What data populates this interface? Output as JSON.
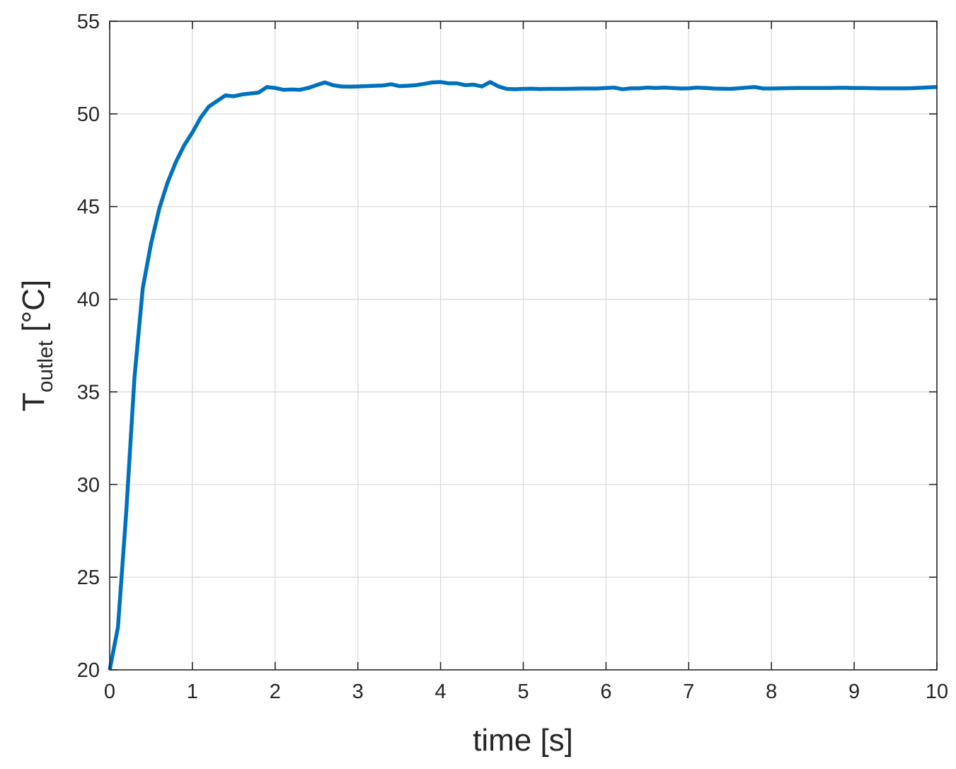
{
  "chart_data": {
    "type": "line",
    "title": "",
    "xlabel": "time [s]",
    "ylabel": {
      "main": "T",
      "subscript": "outlet",
      "unit": " [°C]"
    },
    "xlim": [
      0,
      10
    ],
    "ylim": [
      20,
      55
    ],
    "xticks": [
      0,
      1,
      2,
      3,
      4,
      5,
      6,
      7,
      8,
      9,
      10
    ],
    "yticks": [
      20,
      25,
      30,
      35,
      40,
      45,
      50,
      55
    ],
    "xtick_labels": [
      "0",
      "1",
      "2",
      "3",
      "4",
      "5",
      "6",
      "7",
      "8",
      "9",
      "10"
    ],
    "ytick_labels": [
      "20",
      "25",
      "30",
      "35",
      "40",
      "45",
      "50",
      "55"
    ],
    "grid": true,
    "box": true,
    "colors": {
      "line": "#0072BD",
      "grid": "#dcdcdc",
      "axes": "#262626"
    },
    "series": [
      {
        "x": [
          0,
          0.1,
          0.2,
          0.3,
          0.4,
          0.5,
          0.6,
          0.7,
          0.8,
          0.9,
          1.0,
          1.1,
          1.2,
          1.3,
          1.4,
          1.5,
          1.6,
          1.7,
          1.8,
          1.9,
          2.0,
          2.1,
          2.2,
          2.3,
          2.4,
          2.5,
          2.6,
          2.7,
          2.8,
          2.9,
          3.0,
          3.1,
          3.2,
          3.3,
          3.4,
          3.5,
          3.6,
          3.7,
          3.8,
          3.9,
          4.0,
          4.1,
          4.2,
          4.3,
          4.4,
          4.5,
          4.6,
          4.7,
          4.8,
          4.9,
          5.0,
          5.1,
          5.2,
          5.3,
          5.4,
          5.5,
          5.6,
          5.7,
          5.8,
          5.9,
          6.0,
          6.1,
          6.2,
          6.3,
          6.4,
          6.5,
          6.6,
          6.7,
          6.8,
          6.9,
          7.0,
          7.1,
          7.2,
          7.3,
          7.4,
          7.5,
          7.6,
          7.7,
          7.8,
          7.9,
          8.0,
          8.1,
          8.2,
          8.3,
          8.4,
          8.5,
          8.6,
          8.7,
          8.8,
          8.9,
          9.0,
          9.1,
          9.2,
          9.3,
          9.4,
          9.5,
          9.6,
          9.7,
          9.8,
          9.9,
          10.0
        ],
        "values": [
          20.0,
          22.3,
          28.5,
          35.8,
          40.6,
          43.0,
          44.9,
          46.3,
          47.4,
          48.3,
          49.0,
          49.8,
          50.4,
          50.7,
          51.0,
          50.95,
          51.05,
          51.1,
          51.15,
          51.45,
          51.4,
          51.3,
          51.32,
          51.3,
          51.4,
          51.55,
          51.7,
          51.55,
          51.48,
          51.47,
          51.48,
          51.5,
          51.52,
          51.53,
          51.6,
          51.5,
          51.52,
          51.55,
          51.62,
          51.7,
          51.72,
          51.65,
          51.65,
          51.55,
          51.58,
          51.48,
          51.72,
          51.48,
          51.35,
          51.33,
          51.35,
          51.36,
          51.34,
          51.35,
          51.35,
          51.35,
          51.36,
          51.37,
          51.37,
          51.37,
          51.4,
          51.42,
          51.33,
          51.38,
          51.38,
          51.42,
          51.4,
          51.42,
          51.4,
          51.37,
          51.38,
          51.42,
          51.4,
          51.37,
          51.36,
          51.35,
          51.38,
          51.42,
          51.45,
          51.37,
          51.37,
          51.38,
          51.39,
          51.4,
          51.4,
          51.4,
          51.4,
          51.4,
          51.41,
          51.41,
          51.4,
          51.4,
          51.39,
          51.38,
          51.38,
          51.38,
          51.38,
          51.39,
          51.41,
          51.43,
          51.45
        ]
      }
    ]
  }
}
